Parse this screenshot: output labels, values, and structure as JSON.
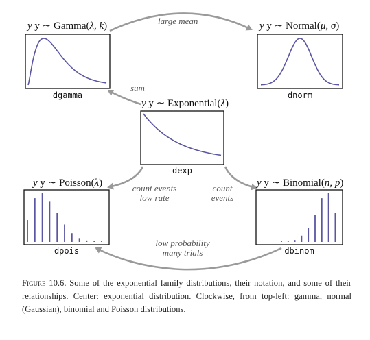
{
  "nodes": {
    "gamma": {
      "title_pre": "y ∼ Gamma(",
      "params": "λ, k",
      "title_post": ")",
      "function": "dgamma"
    },
    "normal": {
      "title_pre": "y ∼ Normal(",
      "params": "μ, σ",
      "title_post": ")",
      "function": "dnorm"
    },
    "exponential": {
      "title_pre": "y ∼ Exponential(",
      "params": "λ",
      "title_post": ")",
      "function": "dexp"
    },
    "poisson": {
      "title_pre": "y ∼ Poisson(",
      "params": "λ",
      "title_post": ")",
      "function": "dpois"
    },
    "binomial": {
      "title_pre": "y ∼ Binomial(",
      "params": "n, p",
      "title_post": ")",
      "function": "dbinom"
    }
  },
  "edges": {
    "gamma_to_normal": "large mean",
    "exponential_to_gamma": "sum",
    "exponential_to_poisson": [
      "count events",
      "low rate"
    ],
    "exponential_to_binomial": [
      "count",
      "events"
    ],
    "binomial_to_poisson": [
      "low probability",
      "many trials"
    ]
  },
  "colors": {
    "curve": "#5a56a3",
    "arrow": "#9a9a9a",
    "box": "#111111"
  },
  "chart_data": {
    "poisson_bars": [
      0.45,
      0.9,
      1.0,
      0.84,
      0.6,
      0.36,
      0.18,
      0.08,
      0.03,
      0.01,
      0.004
    ],
    "binomial_bars": [
      0.004,
      0.01,
      0.04,
      0.13,
      0.29,
      0.55,
      0.9,
      1.0,
      0.6
    ]
  },
  "caption": {
    "figure_label": "Figure 10.6.",
    "text": "Some of the exponential family distributions, their notation, and some of their relationships. Center: exponential distribution. Clockwise, from top-left: gamma, normal (Gaussian), binomial and Poisson distributions."
  }
}
